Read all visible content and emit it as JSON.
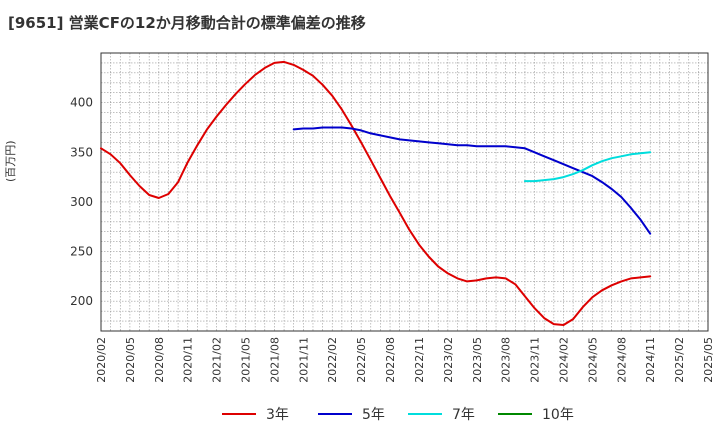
{
  "chart_data": {
    "type": "line",
    "title": "[9651]  営業CFの12か月移動合計の標準偏差の推移",
    "ylabel": "(百万円)",
    "xlabel": "",
    "ylim": [
      170,
      450
    ],
    "yticks": [
      200,
      250,
      300,
      350,
      400
    ],
    "xticks": [
      "2020/02",
      "2020/05",
      "2020/08",
      "2020/11",
      "2021/02",
      "2021/05",
      "2021/08",
      "2021/11",
      "2022/02",
      "2022/05",
      "2022/08",
      "2022/11",
      "2023/02",
      "2023/05",
      "2023/08",
      "2023/11",
      "2024/02",
      "2024/05",
      "2024/08",
      "2024/11",
      "2025/02",
      "2025/05"
    ],
    "x_start": "2020/02",
    "x_end": "2025/05",
    "grid": true,
    "legend_position": "bottom",
    "series": [
      {
        "name": "3年",
        "color": "#dd0000",
        "x": [
          "2020/02",
          "2020/03",
          "2020/04",
          "2020/05",
          "2020/06",
          "2020/07",
          "2020/08",
          "2020/09",
          "2020/10",
          "2020/11",
          "2020/12",
          "2021/01",
          "2021/02",
          "2021/03",
          "2021/04",
          "2021/05",
          "2021/06",
          "2021/07",
          "2021/08",
          "2021/09",
          "2021/10",
          "2021/11",
          "2021/12",
          "2022/01",
          "2022/02",
          "2022/03",
          "2022/04",
          "2022/05",
          "2022/06",
          "2022/07",
          "2022/08",
          "2022/09",
          "2022/10",
          "2022/11",
          "2022/12",
          "2023/01",
          "2023/02",
          "2023/03",
          "2023/04",
          "2023/05",
          "2023/06",
          "2023/07",
          "2023/08",
          "2023/09",
          "2023/10",
          "2023/11",
          "2023/12",
          "2024/01",
          "2024/02",
          "2024/03",
          "2024/04",
          "2024/05",
          "2024/06",
          "2024/07",
          "2024/08",
          "2024/09",
          "2024/10",
          "2024/11"
        ],
        "values": [
          354,
          348,
          339,
          327,
          316,
          307,
          304,
          308,
          320,
          340,
          357,
          373,
          386,
          398,
          409,
          419,
          428,
          435,
          440,
          441,
          438,
          433,
          427,
          418,
          407,
          393,
          377,
          360,
          342,
          324,
          306,
          289,
          272,
          257,
          245,
          235,
          228,
          223,
          220,
          221,
          223,
          224,
          223,
          217,
          205,
          193,
          183,
          177,
          176,
          182,
          194,
          204,
          211,
          216,
          220,
          223,
          224,
          225
        ]
      },
      {
        "name": "5年",
        "color": "#0000cc",
        "x": [
          "2021/10",
          "2021/11",
          "2021/12",
          "2022/01",
          "2022/02",
          "2022/03",
          "2022/04",
          "2022/05",
          "2022/06",
          "2022/07",
          "2022/08",
          "2022/09",
          "2022/10",
          "2022/11",
          "2022/12",
          "2023/01",
          "2023/02",
          "2023/03",
          "2023/04",
          "2023/05",
          "2023/06",
          "2023/07",
          "2023/08",
          "2023/09",
          "2023/10",
          "2023/11",
          "2023/12",
          "2024/01",
          "2024/02",
          "2024/03",
          "2024/04",
          "2024/05",
          "2024/06",
          "2024/07",
          "2024/08",
          "2024/09",
          "2024/10",
          "2024/11"
        ],
        "values": [
          373,
          374,
          374,
          375,
          375,
          375,
          374,
          372,
          369,
          367,
          365,
          363,
          362,
          361,
          360,
          359,
          358,
          357,
          357,
          356,
          356,
          356,
          356,
          355,
          354,
          350,
          346,
          342,
          338,
          334,
          330,
          326,
          320,
          313,
          305,
          294,
          282,
          268
        ]
      },
      {
        "name": "7年",
        "color": "#00dddd",
        "x": [
          "2023/10",
          "2023/11",
          "2023/12",
          "2024/01",
          "2024/02",
          "2024/03",
          "2024/04",
          "2024/05",
          "2024/06",
          "2024/07",
          "2024/08",
          "2024/09",
          "2024/10",
          "2024/11"
        ],
        "values": [
          321,
          321,
          322,
          323,
          325,
          328,
          332,
          337,
          341,
          344,
          346,
          348,
          349,
          350
        ]
      },
      {
        "name": "10年",
        "color": "#008800",
        "x": [],
        "values": []
      }
    ]
  }
}
